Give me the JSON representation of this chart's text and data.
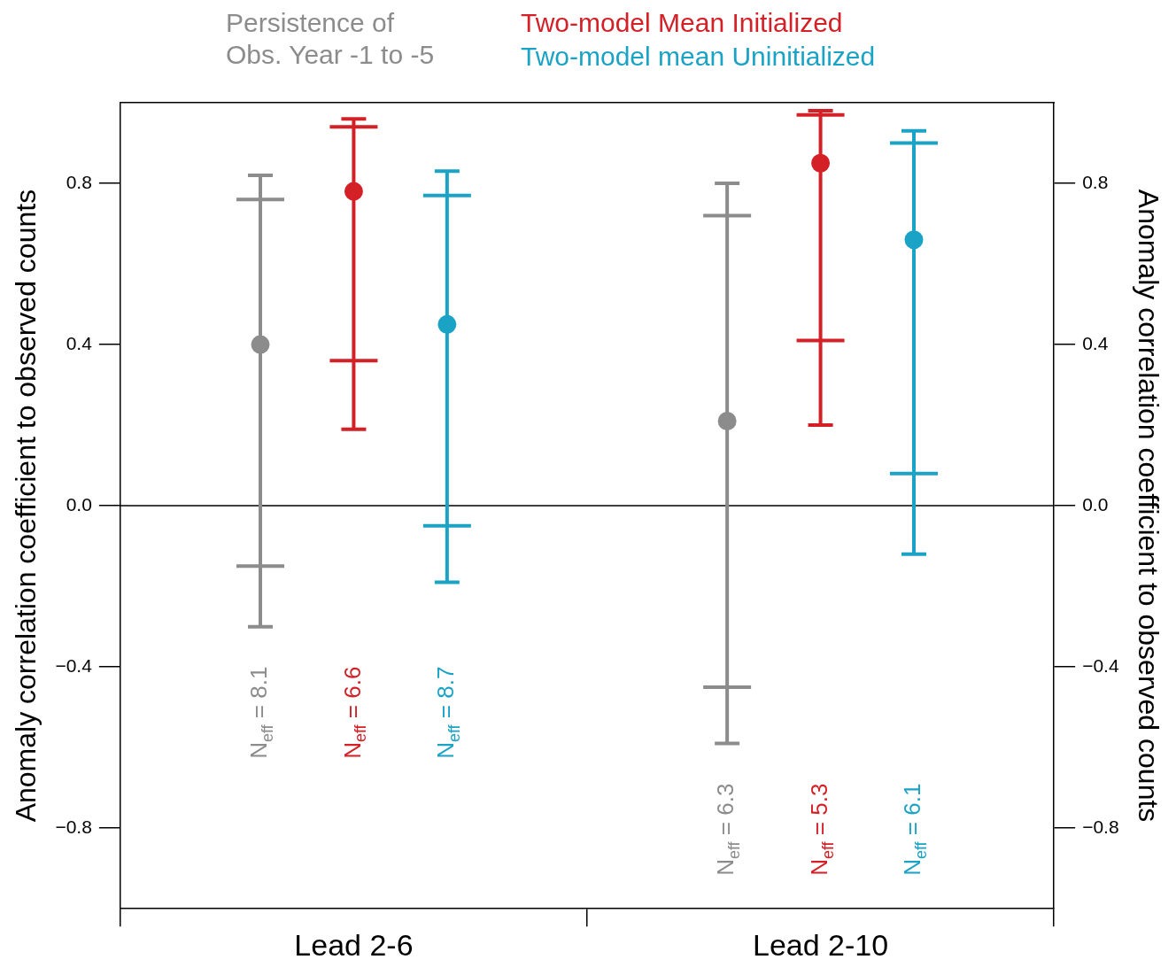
{
  "chart_data": {
    "type": "box",
    "categories": [
      "Lead 2-6",
      "Lead 2-10"
    ],
    "series": [
      {
        "name": "Persistence of Obs. Year -1 to -5",
        "color": "#8c8c8c",
        "boxes": [
          {
            "low": -0.3,
            "q1": -0.15,
            "median": 0.4,
            "q3": 0.76,
            "high": 0.82
          },
          {
            "low": -0.59,
            "q1": -0.45,
            "median": 0.21,
            "q3": 0.72,
            "high": 0.8
          }
        ]
      },
      {
        "name": "Two-model Mean Initialized",
        "color": "#d42027",
        "boxes": [
          {
            "low": 0.19,
            "q1": 0.36,
            "median": 0.78,
            "q3": 0.94,
            "high": 0.96
          },
          {
            "low": 0.2,
            "q1": 0.41,
            "median": 0.85,
            "q3": 0.97,
            "high": 0.98
          }
        ]
      },
      {
        "name": "Two-model mean Uninitialized",
        "color": "#1ba3c6",
        "boxes": [
          {
            "low": -0.19,
            "q1": -0.05,
            "median": 0.45,
            "q3": 0.77,
            "high": 0.83
          },
          {
            "low": -0.12,
            "q1": 0.08,
            "median": 0.66,
            "q3": 0.9,
            "high": 0.93
          }
        ]
      }
    ],
    "ylabel": "Anomaly correlation coefficient to observed counts",
    "y2label": "Anomaly correlation coefficient to observed counts",
    "ylim": [
      -1.0,
      1.0
    ],
    "yticks": [
      {
        "value": -0.8,
        "label": "−0.8"
      },
      {
        "value": -0.4,
        "label": "−0.4"
      },
      {
        "value": 0,
        "label": "0.0"
      },
      {
        "value": 0.4,
        "label": "0.4"
      },
      {
        "value": 0.8,
        "label": "0.8"
      }
    ],
    "y2lim": [
      -1.0,
      1.0
    ],
    "y2ticks": [
      {
        "value": -0.8,
        "label": "−0.8"
      },
      {
        "value": -0.4,
        "label": "−0.4"
      },
      {
        "value": 0,
        "label": "0.0"
      },
      {
        "value": 0.4,
        "label": "0.4"
      },
      {
        "value": 0.8,
        "label": "0.8"
      }
    ],
    "ref_lines": [
      {
        "axis": "y",
        "value": 0,
        "color": "#000000"
      }
    ],
    "annotations": [
      "N$_{eff}$ = 8.1",
      "N$_{eff}$ = 6.6",
      "N$_{eff}$ = 8.7",
      "N$_{eff}$ = 6.3",
      "N$_{eff}$ = 5.3",
      "N$_{eff}$ = 6.1"
    ],
    "marker": "circle",
    "legend": "top",
    "grid": false
  }
}
